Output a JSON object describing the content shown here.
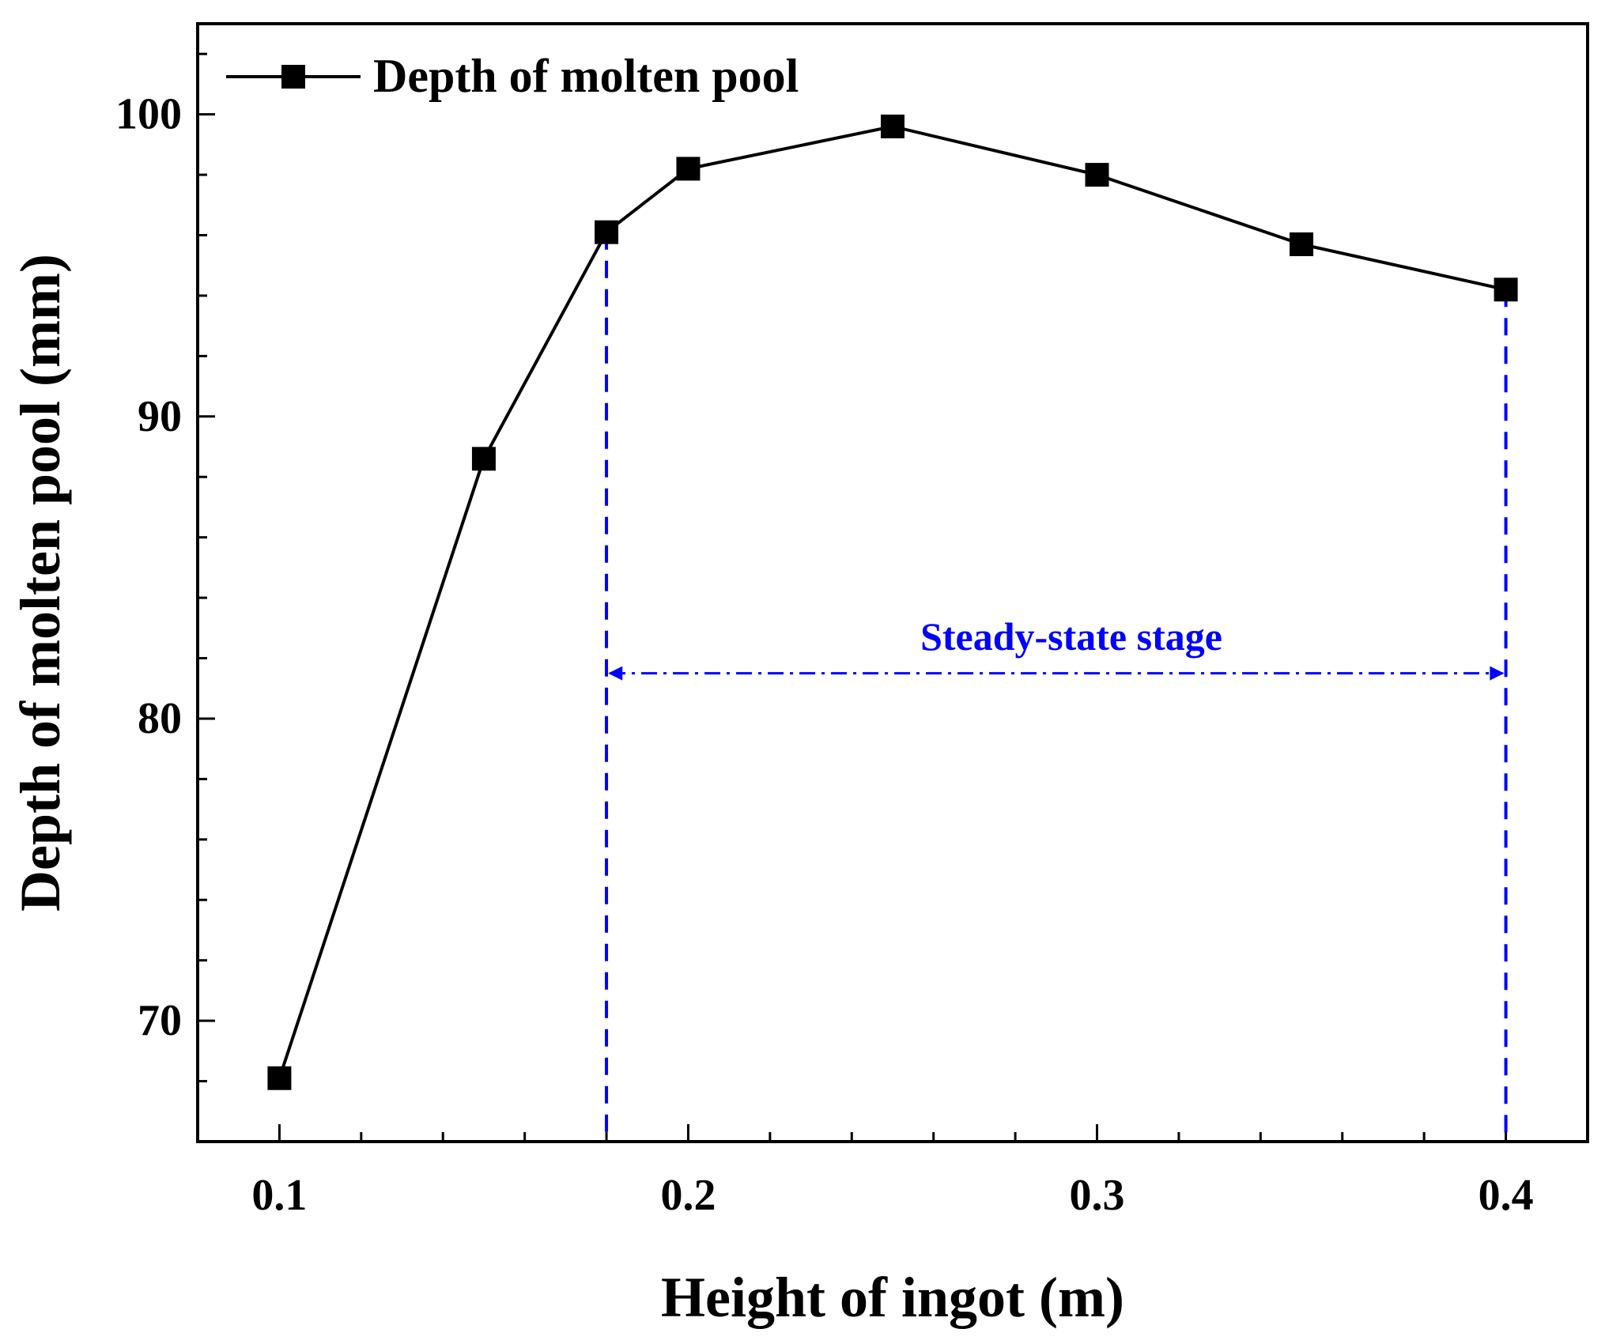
{
  "chart_data": {
    "type": "line",
    "title": "",
    "xlabel": "Height of ingot (m)",
    "ylabel": "Depth of molten pool (mm)",
    "xlim": [
      0.08,
      0.42
    ],
    "ylim": [
      66,
      103
    ],
    "xticks": [
      0.1,
      0.2,
      0.3,
      0.4
    ],
    "xtick_labels": [
      "0.1",
      "0.2",
      "0.3",
      "0.4"
    ],
    "x_minor_step": 0.02,
    "yticks": [
      70,
      80,
      90,
      100
    ],
    "ytick_labels": [
      "70",
      "80",
      "90",
      "100"
    ],
    "y_minor_step": 2,
    "grid": false,
    "legend_position": "top-left",
    "series": [
      {
        "name": "Depth of molten pool",
        "marker": "square",
        "color": "#000000",
        "x": [
          0.1,
          0.15,
          0.18,
          0.2,
          0.25,
          0.3,
          0.35,
          0.4
        ],
        "y": [
          68.1,
          88.6,
          96.1,
          98.2,
          99.6,
          98.0,
          95.7,
          94.2
        ]
      }
    ],
    "annotations": {
      "label": "Steady-state stage",
      "color": "#0000ff",
      "x_start": 0.18,
      "x_end": 0.4,
      "arrow_y": 81.5
    }
  }
}
